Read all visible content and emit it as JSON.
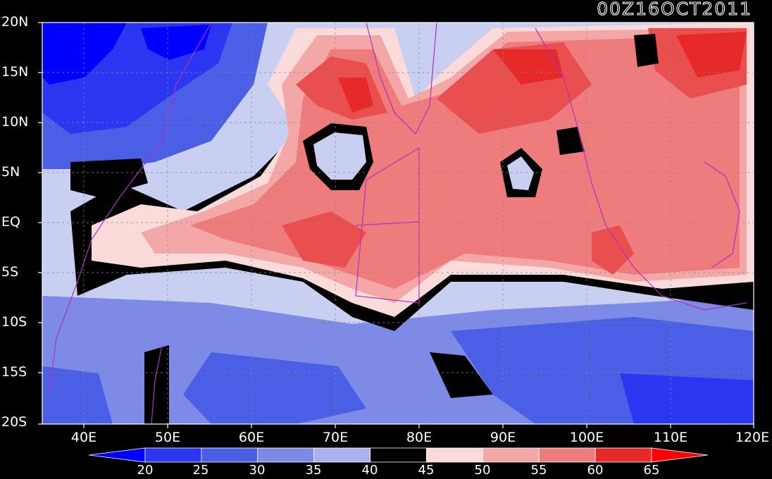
{
  "title": "00Z16OCT2011",
  "map": {
    "lat_labels": [
      "20N",
      "15N",
      "10N",
      "5N",
      "EQ",
      "5S",
      "10S",
      "15S",
      "20S"
    ],
    "lon_labels": [
      "40E",
      "50E",
      "60E",
      "70E",
      "80E",
      "90E",
      "100E",
      "110E",
      "120E"
    ],
    "lat_values": [
      20,
      15,
      10,
      5,
      0,
      -5,
      -10,
      -15,
      -20
    ],
    "lon_values": [
      40,
      50,
      60,
      70,
      80,
      90,
      100,
      110,
      120
    ],
    "lon_range": [
      35,
      120
    ],
    "lat_range": [
      -20,
      20
    ]
  },
  "colorbar": {
    "labels": [
      "20",
      "25",
      "30",
      "35",
      "40",
      "45",
      "50",
      "55",
      "60",
      "65"
    ],
    "colors": [
      "#0000ff",
      "#2b36f0",
      "#4a5ee6",
      "#7d8be6",
      "#a9b2ee",
      "#d4d9f6",
      "#000000",
      "#fbdada",
      "#f4a7a7",
      "#ee7c7c",
      "#ea4f4f",
      "#e62a2a",
      "#ff0000"
    ]
  }
}
